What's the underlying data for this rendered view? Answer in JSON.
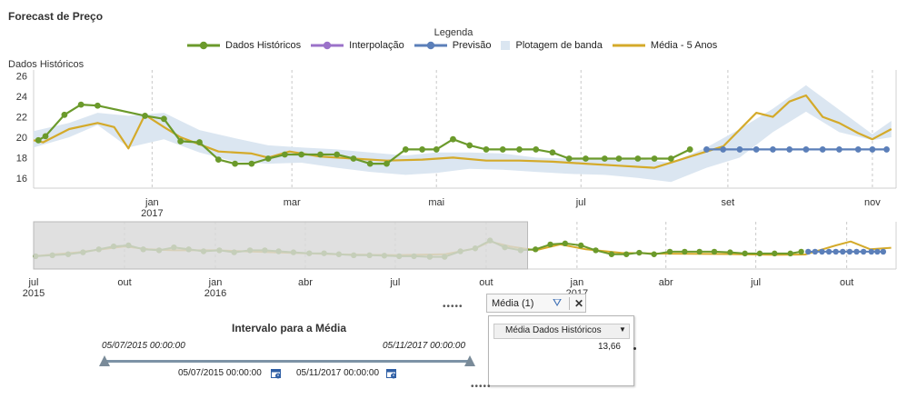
{
  "page_title": "Forecast de Preço",
  "legend": {
    "title": "Legenda",
    "items": [
      {
        "label": "Dados Históricos",
        "color": "#6b9a2b",
        "marker": "line-dot"
      },
      {
        "label": "Interpolação",
        "color": "#9b72c9",
        "marker": "line-dot"
      },
      {
        "label": "Previsão",
        "color": "#5b7fb9",
        "marker": "line-dot"
      },
      {
        "label": "Plotagem de banda",
        "color": "#dbe6f1",
        "marker": "box"
      },
      {
        "label": "Média - 5 Anos",
        "color": "#d4aa2a",
        "marker": "line"
      }
    ]
  },
  "chart_data": [
    {
      "type": "line",
      "ylabel": "Dados Históricos",
      "yticks": [
        16,
        18,
        20,
        22,
        24,
        26
      ],
      "ylim": [
        15,
        26.6
      ],
      "xlim": [
        "2016-11-12",
        "2017-11-11"
      ],
      "xticks": [
        {
          "date": "2017-01-01",
          "label": "jan",
          "year": "2017"
        },
        {
          "date": "2017-03-01",
          "label": "mar",
          "year": ""
        },
        {
          "date": "2017-05-01",
          "label": "mai",
          "year": ""
        },
        {
          "date": "2017-07-01",
          "label": "jul",
          "year": ""
        },
        {
          "date": "2017-09-01",
          "label": "set",
          "year": ""
        },
        {
          "date": "2017-11-01",
          "label": "nov",
          "year": ""
        }
      ],
      "grid": "vertical dashed",
      "series": [
        {
          "name": "Dados Históricos",
          "color": "#6b9a2b",
          "markers": true,
          "x": [
            "2016-11-14",
            "2016-11-17",
            "2016-11-25",
            "2016-12-02",
            "2016-12-09",
            "2016-12-29",
            "2017-01-06",
            "2017-01-13",
            "2017-01-21",
            "2017-01-29",
            "2017-02-05",
            "2017-02-12",
            "2017-02-19",
            "2017-02-26",
            "2017-03-05",
            "2017-03-13",
            "2017-03-20",
            "2017-03-27",
            "2017-04-03",
            "2017-04-10",
            "2017-04-18",
            "2017-04-25",
            "2017-05-01",
            "2017-05-08",
            "2017-05-15",
            "2017-05-22",
            "2017-05-29",
            "2017-06-05",
            "2017-06-12",
            "2017-06-19",
            "2017-06-26",
            "2017-07-03",
            "2017-07-11",
            "2017-07-17",
            "2017-07-25",
            "2017-08-01",
            "2017-08-08",
            "2017-08-16"
          ],
          "y": [
            19.7,
            20.1,
            22.2,
            23.2,
            23.1,
            22.1,
            21.8,
            19.6,
            19.5,
            17.8,
            17.4,
            17.4,
            17.9,
            18.3,
            18.3,
            18.3,
            18.3,
            17.9,
            17.4,
            17.4,
            18.8,
            18.8,
            18.8,
            19.8,
            19.2,
            18.8,
            18.8,
            18.8,
            18.8,
            18.5,
            17.9,
            17.9,
            17.9,
            17.9,
            17.9,
            17.9,
            17.9,
            18.8
          ]
        },
        {
          "name": "Previsão",
          "color": "#5b7fb9",
          "markers": true,
          "x": [
            "2017-08-23",
            "2017-08-30",
            "2017-09-06",
            "2017-09-13",
            "2017-09-20",
            "2017-09-27",
            "2017-10-04",
            "2017-10-11",
            "2017-10-18",
            "2017-10-26",
            "2017-11-01",
            "2017-11-07"
          ],
          "y": [
            18.8,
            18.8,
            18.8,
            18.8,
            18.8,
            18.8,
            18.8,
            18.8,
            18.8,
            18.8,
            18.8,
            18.8
          ]
        },
        {
          "name": "Média - 5 Anos",
          "color": "#d4aa2a",
          "markers": false,
          "x": [
            "2016-11-12",
            "2016-11-16",
            "2016-11-27",
            "2016-12-09",
            "2016-12-16",
            "2016-12-22",
            "2016-12-29",
            "2017-01-06",
            "2017-01-13",
            "2017-01-29",
            "2017-02-12",
            "2017-02-19",
            "2017-02-28",
            "2017-03-13",
            "2017-03-27",
            "2017-04-10",
            "2017-04-25",
            "2017-05-08",
            "2017-05-22",
            "2017-06-05",
            "2017-06-19",
            "2017-07-03",
            "2017-07-17",
            "2017-08-01",
            "2017-08-16",
            "2017-08-30",
            "2017-09-13",
            "2017-09-20",
            "2017-09-27",
            "2017-10-04",
            "2017-10-11",
            "2017-10-18",
            "2017-10-26",
            "2017-11-01",
            "2017-11-09"
          ],
          "y": [
            19.7,
            19.5,
            20.8,
            21.4,
            21.0,
            18.9,
            22.2,
            21.0,
            20.0,
            18.6,
            18.4,
            18.0,
            18.6,
            18.1,
            17.9,
            17.7,
            17.8,
            18.0,
            17.7,
            17.7,
            17.6,
            17.4,
            17.2,
            17.0,
            18.1,
            19.1,
            22.4,
            22.0,
            23.5,
            24.1,
            22.0,
            21.4,
            20.4,
            19.8,
            20.8
          ]
        },
        {
          "name": "Plotagem de banda",
          "color": "#dbe6f1",
          "type": "band",
          "x": [
            "2016-11-12",
            "2016-11-27",
            "2016-12-09",
            "2016-12-22",
            "2017-01-06",
            "2017-01-21",
            "2017-02-05",
            "2017-02-19",
            "2017-03-05",
            "2017-03-20",
            "2017-04-03",
            "2017-04-18",
            "2017-05-01",
            "2017-05-15",
            "2017-05-29",
            "2017-06-12",
            "2017-06-26",
            "2017-07-11",
            "2017-07-25",
            "2017-08-08",
            "2017-08-23",
            "2017-09-06",
            "2017-09-20",
            "2017-10-04",
            "2017-10-18",
            "2017-11-01",
            "2017-11-09"
          ],
          "low": [
            19.0,
            20.0,
            21.2,
            19.0,
            19.8,
            18.5,
            17.6,
            17.4,
            17.5,
            17.0,
            16.6,
            16.3,
            16.5,
            16.9,
            16.8,
            16.6,
            16.4,
            16.3,
            16.0,
            15.6,
            17.0,
            18.0,
            20.5,
            22.5,
            20.5,
            19.7,
            20.0
          ],
          "high": [
            20.6,
            21.4,
            22.4,
            22.1,
            22.4,
            20.7,
            19.9,
            19.2,
            19.0,
            18.8,
            18.5,
            18.2,
            18.5,
            18.5,
            18.4,
            18.0,
            17.9,
            17.9,
            17.9,
            17.5,
            19.0,
            20.8,
            22.8,
            25.1,
            22.7,
            20.3,
            21.6
          ]
        }
      ]
    },
    {
      "type": "line",
      "role": "navigator",
      "xlim": [
        "2015-07-01",
        "2017-11-20"
      ],
      "ylim": [
        10,
        34
      ],
      "selected_range": [
        "2015-07-01",
        "2016-11-12"
      ],
      "xticks": [
        {
          "date": "2015-07-01",
          "label": "jul",
          "year": "2015"
        },
        {
          "date": "2015-10-01",
          "label": "out",
          "year": ""
        },
        {
          "date": "2016-01-01",
          "label": "jan",
          "year": "2016"
        },
        {
          "date": "2016-04-01",
          "label": "abr",
          "year": ""
        },
        {
          "date": "2016-07-01",
          "label": "jul",
          "year": ""
        },
        {
          "date": "2016-10-01",
          "label": "out",
          "year": ""
        },
        {
          "date": "2017-01-01",
          "label": "jan",
          "year": "2017"
        },
        {
          "date": "2017-04-01",
          "label": "abr",
          "year": ""
        },
        {
          "date": "2017-07-01",
          "label": "jul",
          "year": ""
        },
        {
          "date": "2017-10-01",
          "label": "out",
          "year": ""
        }
      ],
      "series": [
        {
          "name": "Dados Históricos",
          "color": "#6b9a2b",
          "markers": true,
          "x": [
            "2015-07-03",
            "2015-07-20",
            "2015-08-05",
            "2015-08-20",
            "2015-09-05",
            "2015-09-20",
            "2015-10-05",
            "2015-10-20",
            "2015-11-05",
            "2015-11-20",
            "2015-12-05",
            "2015-12-20",
            "2016-01-05",
            "2016-01-20",
            "2016-02-05",
            "2016-02-20",
            "2016-03-05",
            "2016-03-20",
            "2016-04-05",
            "2016-04-20",
            "2016-05-05",
            "2016-05-20",
            "2016-06-05",
            "2016-06-20",
            "2016-07-05",
            "2016-07-20",
            "2016-08-05",
            "2016-08-20",
            "2016-09-05",
            "2016-09-20",
            "2016-10-05",
            "2016-10-20",
            "2016-11-05",
            "2016-11-20",
            "2016-12-05",
            "2016-12-20",
            "2017-01-05",
            "2017-01-20",
            "2017-02-05",
            "2017-02-20",
            "2017-03-05",
            "2017-03-20",
            "2017-04-05",
            "2017-04-20",
            "2017-05-05",
            "2017-05-20",
            "2017-06-05",
            "2017-06-20",
            "2017-07-05",
            "2017-07-20",
            "2017-08-05",
            "2017-08-16"
          ],
          "y": [
            16.5,
            17.0,
            17.5,
            18.5,
            20.0,
            21.5,
            22.0,
            20.0,
            19.5,
            21.0,
            20.0,
            19.0,
            19.5,
            18.5,
            19.5,
            19.5,
            19.0,
            18.5,
            18.0,
            18.0,
            17.5,
            17.0,
            17.0,
            16.8,
            16.5,
            16.5,
            16.2,
            16.2,
            19.0,
            20.5,
            24.5,
            21.0,
            19.5,
            20.0,
            22.5,
            23.0,
            22.0,
            19.5,
            17.5,
            17.5,
            18.3,
            17.5,
            18.8,
            18.8,
            18.8,
            18.8,
            18.5,
            17.9,
            17.9,
            17.9,
            17.9,
            18.8
          ]
        },
        {
          "name": "Previsão",
          "color": "#5b7fb9",
          "markers": true,
          "x": [
            "2017-08-23",
            "2017-08-30",
            "2017-09-06",
            "2017-09-13",
            "2017-09-20",
            "2017-09-27",
            "2017-10-04",
            "2017-10-11",
            "2017-10-18",
            "2017-10-26",
            "2017-11-01",
            "2017-11-07"
          ],
          "y": [
            18.8,
            18.8,
            18.8,
            18.8,
            18.8,
            18.8,
            18.8,
            18.8,
            18.8,
            18.8,
            18.8,
            18.8
          ]
        },
        {
          "name": "Média - 5 Anos",
          "color": "#d4aa2a",
          "markers": false,
          "x": [
            "2015-07-01",
            "2015-08-15",
            "2015-10-01",
            "2015-10-25",
            "2015-11-20",
            "2016-01-01",
            "2016-03-01",
            "2016-05-01",
            "2016-07-01",
            "2016-08-20",
            "2016-09-20",
            "2016-10-05",
            "2016-10-25",
            "2016-11-20",
            "2016-12-15",
            "2017-01-10",
            "2017-02-15",
            "2017-04-01",
            "2017-06-01",
            "2017-07-20",
            "2017-08-20",
            "2017-09-20",
            "2017-10-05",
            "2017-10-25",
            "2017-11-15"
          ],
          "y": [
            16.5,
            18.5,
            21.5,
            20.0,
            19.5,
            19.5,
            18.5,
            17.5,
            17.0,
            17.5,
            20.5,
            24.0,
            21.5,
            19.5,
            22.5,
            20.0,
            18.2,
            17.8,
            17.6,
            17.2,
            17.4,
            22.0,
            24.0,
            20.0,
            20.8
          ]
        }
      ]
    }
  ],
  "average_panel": {
    "title": "Intervalo para a Média",
    "range_start_label": "05/07/2015 00:00:00",
    "range_end_label": "05/11/2017 00:00:00",
    "date_from": "05/07/2015 00:00:00",
    "date_to": "05/11/2017 00:00:00"
  },
  "mean_box": {
    "tab_label": "Média (1)",
    "close_label": "✕",
    "column_header": "Média Dados Históricos",
    "value": "13,66"
  },
  "colors": {
    "navigator_mask": "#d9d9d9",
    "range_track": "#7d93a6",
    "grid": "#c8c8c8"
  }
}
